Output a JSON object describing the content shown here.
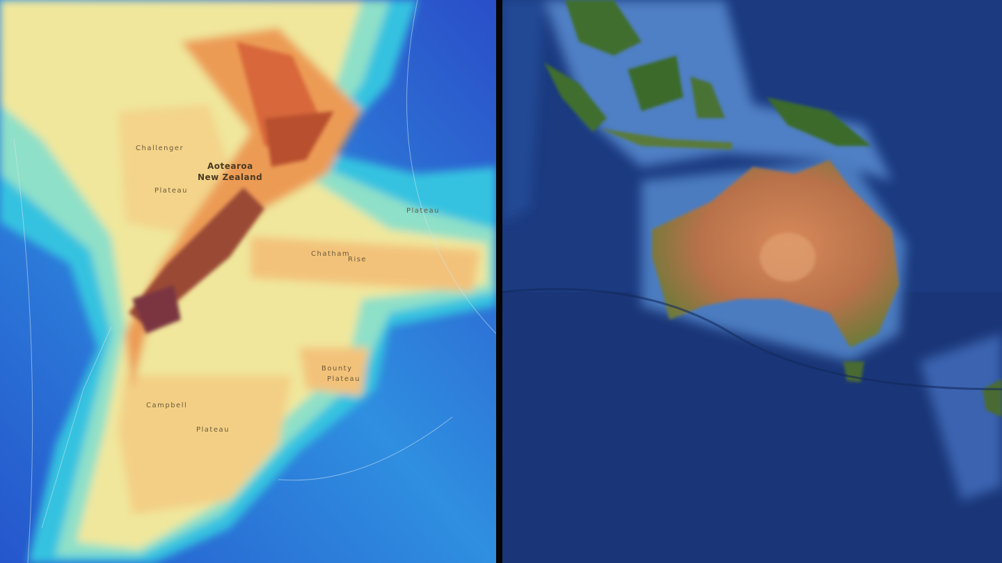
{
  "left_map": {
    "type": "bathymetric-topographic map",
    "labels": {
      "challenger": "Challenger",
      "challenger_plateau": "Plateau",
      "aotearoa": "Aotearoa",
      "new_zealand": "New Zealand",
      "chatham": "Chatham",
      "rise": "Rise",
      "campbell": "Campbell",
      "campbell_plateau": "Plateau",
      "bounty": "Bounty",
      "bounty_plateau": "Plateau",
      "hikurangi_plateau": "Plateau"
    },
    "colors": {
      "deep_ocean": "#1f4fc8",
      "mid_ocean": "#2aa6e6",
      "shallow": "#8fe0c8",
      "shelf": "#f2e79a",
      "plateau": "#f3c27a",
      "land": "#e8824a",
      "mountains": "#7a3a3a"
    }
  },
  "right_map": {
    "type": "satellite map",
    "colors": {
      "ocean": "#1d3f85",
      "shelf": "#5a8bd0",
      "desert": "#c27a4e",
      "vegetation": "#3e6a2e"
    }
  }
}
